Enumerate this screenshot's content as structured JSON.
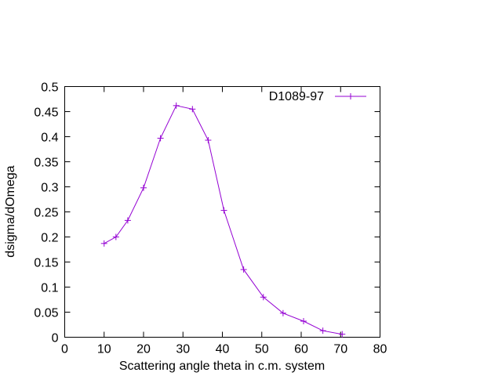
{
  "chart_data": {
    "type": "line",
    "title": "",
    "xlabel": "Scattering angle theta in c.m. system",
    "ylabel": "dsigma/dOmega",
    "xlim": [
      0,
      80
    ],
    "ylim": [
      0,
      0.5
    ],
    "x_ticks": [
      "0",
      "10",
      "20",
      "30",
      "40",
      "50",
      "60",
      "70",
      "80"
    ],
    "y_ticks": [
      "0",
      "0.05",
      "0.1",
      "0.15",
      "0.2",
      "0.25",
      "0.3",
      "0.35",
      "0.4",
      "0.45",
      "0.5"
    ],
    "x_tick_values": [
      0,
      10,
      20,
      30,
      40,
      50,
      60,
      70,
      80
    ],
    "y_tick_values": [
      0,
      0.05,
      0.1,
      0.15,
      0.2,
      0.25,
      0.3,
      0.35,
      0.4,
      0.45,
      0.5
    ],
    "grid": false,
    "legend_position": "top-right",
    "series": [
      {
        "name": "D1089-97",
        "color": "#9400d3",
        "marker": "plus",
        "x": [
          10,
          13,
          16,
          20,
          24.3,
          28.3,
          32.4,
          36.4,
          40.4,
          45.4,
          50.4,
          55.4,
          60.6,
          65.5,
          70.4
        ],
        "y": [
          0.187,
          0.2,
          0.233,
          0.298,
          0.397,
          0.462,
          0.455,
          0.393,
          0.253,
          0.135,
          0.08,
          0.048,
          0.032,
          0.013,
          0.006
        ]
      }
    ]
  }
}
